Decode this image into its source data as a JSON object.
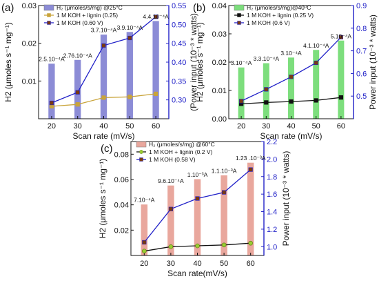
{
  "chart_data": [
    {
      "panel_label": "(a)",
      "type": "bar",
      "x": [
        20,
        30,
        40,
        50,
        60
      ],
      "xlabel": "Scan rate (mV/s)",
      "ylabel": "H2 (μmoles s⁻¹ mg⁻¹)",
      "ylabel_right": "(Power input (10⁻³ * watts)",
      "ylim": [
        0.0,
        0.03
      ],
      "ylim_right": [
        0.25,
        0.55
      ],
      "yticks": [
        "0.01",
        "0.02",
        "0.03"
      ],
      "yticks_right": [
        "0.30",
        "0.35",
        "0.40",
        "0.45",
        "0.50",
        "0.55"
      ],
      "bar_color": "#8c8cd6",
      "bars": {
        "name": "H₂ (μmoles/s/mg) @25°C",
        "values": [
          0.0145,
          0.0155,
          0.0222,
          0.0229,
          0.0258
        ]
      },
      "series": [
        {
          "name": "1 M KOH + lignin (0.25)",
          "axis": "right",
          "color": "#c9a43a",
          "marker": "square",
          "values": [
            0.283,
            0.288,
            0.306,
            0.308,
            0.316
          ]
        },
        {
          "name": "1 M KOH (0.60 V)",
          "axis": "right",
          "color": "#2020c8",
          "marker": "square",
          "values": [
            0.292,
            0.32,
            0.444,
            0.464,
            0.52
          ]
        }
      ],
      "annotations": [
        "2.5.10⁻⁴A",
        "2.76.10⁻⁴A",
        "3.7.10⁻⁴A",
        "3.9.10⁻⁴A",
        "4.4.10⁻⁴A"
      ],
      "legend": "top-left"
    },
    {
      "panel_label": "(b)",
      "type": "bar",
      "x": [
        20,
        30,
        40,
        50,
        60
      ],
      "xlabel": "Scan rate (mV/s)",
      "ylabel": "H2 (μmoles s⁻¹ mg⁻¹)",
      "ylabel_right": "Power input (10⁻³ * watts)",
      "ylim": [
        0.0,
        0.04
      ],
      "ylim_right": [
        0.4,
        0.9
      ],
      "yticks": [
        "0.00",
        "0.01",
        "0.02",
        "0.03",
        "0.04"
      ],
      "yticks_right": [
        "0.5",
        "0.6",
        "0.7",
        "0.8",
        "0.9"
      ],
      "bar_color": "#7dde7d",
      "bars": {
        "name": "H₂ (μmoles/s/mg)@40⁰C",
        "values": [
          0.018,
          0.0195,
          0.0215,
          0.0242,
          0.0275
        ]
      },
      "series": [
        {
          "name": "1 M KOH + lignin (0.25 V)",
          "axis": "right",
          "color": "#111111",
          "marker": "square",
          "values": [
            0.466,
            0.472,
            0.476,
            0.481,
            0.494
          ]
        },
        {
          "name": "1 M KOH (0.6 V)",
          "axis": "right",
          "color": "#2020c8",
          "marker": "square",
          "values": [
            0.478,
            0.53,
            0.585,
            0.647,
            0.76
          ]
        }
      ],
      "annotations": [
        "3.10⁻⁴A",
        "3.3.10⁻⁴A",
        "3.10⁻⁴A",
        "4.1.10⁻⁴A",
        "5.10⁻⁴A"
      ],
      "legend": "top-left"
    },
    {
      "panel_label": "(c)",
      "type": "bar",
      "x": [
        20,
        30,
        40,
        50,
        60
      ],
      "xlabel": "Scan rate(mV/s)",
      "ylabel": "H2 (μmoles s⁻¹ mg⁻¹)",
      "ylabel_right": "Power input (10⁻³ * watts)",
      "ylim": [
        0.0,
        0.09
      ],
      "ylim_right": [
        0.9,
        2.2
      ],
      "yticks": [
        "0.02",
        "0.04",
        "0.06",
        "0.08"
      ],
      "yticks_right": [
        "1.0",
        "1.2",
        "1.4",
        "1.6",
        "1.8",
        "2.0",
        "2.2"
      ],
      "bar_color": "#e9a79d",
      "bars": {
        "name": "H₂ (μmoles/s/mg) @60°C",
        "values": [
          0.04,
          0.055,
          0.06,
          0.063,
          0.073
        ]
      },
      "series": [
        {
          "name": "1 M KOH + lignin (0.2 V)",
          "axis": "right",
          "color": "#111111",
          "marker": "circle",
          "values": [
            0.95,
            1.0,
            1.01,
            1.02,
            1.04
          ]
        },
        {
          "name": "1 M KOH (0.58 V)",
          "axis": "right",
          "color": "#2020c8",
          "marker": "square",
          "values": [
            1.05,
            1.43,
            1.55,
            1.62,
            1.88
          ]
        }
      ],
      "annotations": [
        "7.10⁻⁴A",
        "9.6.10⁻⁴A",
        "1.10⁻³A",
        "1.1.10⁻³A",
        "1.23 .10⁻³A"
      ],
      "legend": "top-left"
    }
  ]
}
